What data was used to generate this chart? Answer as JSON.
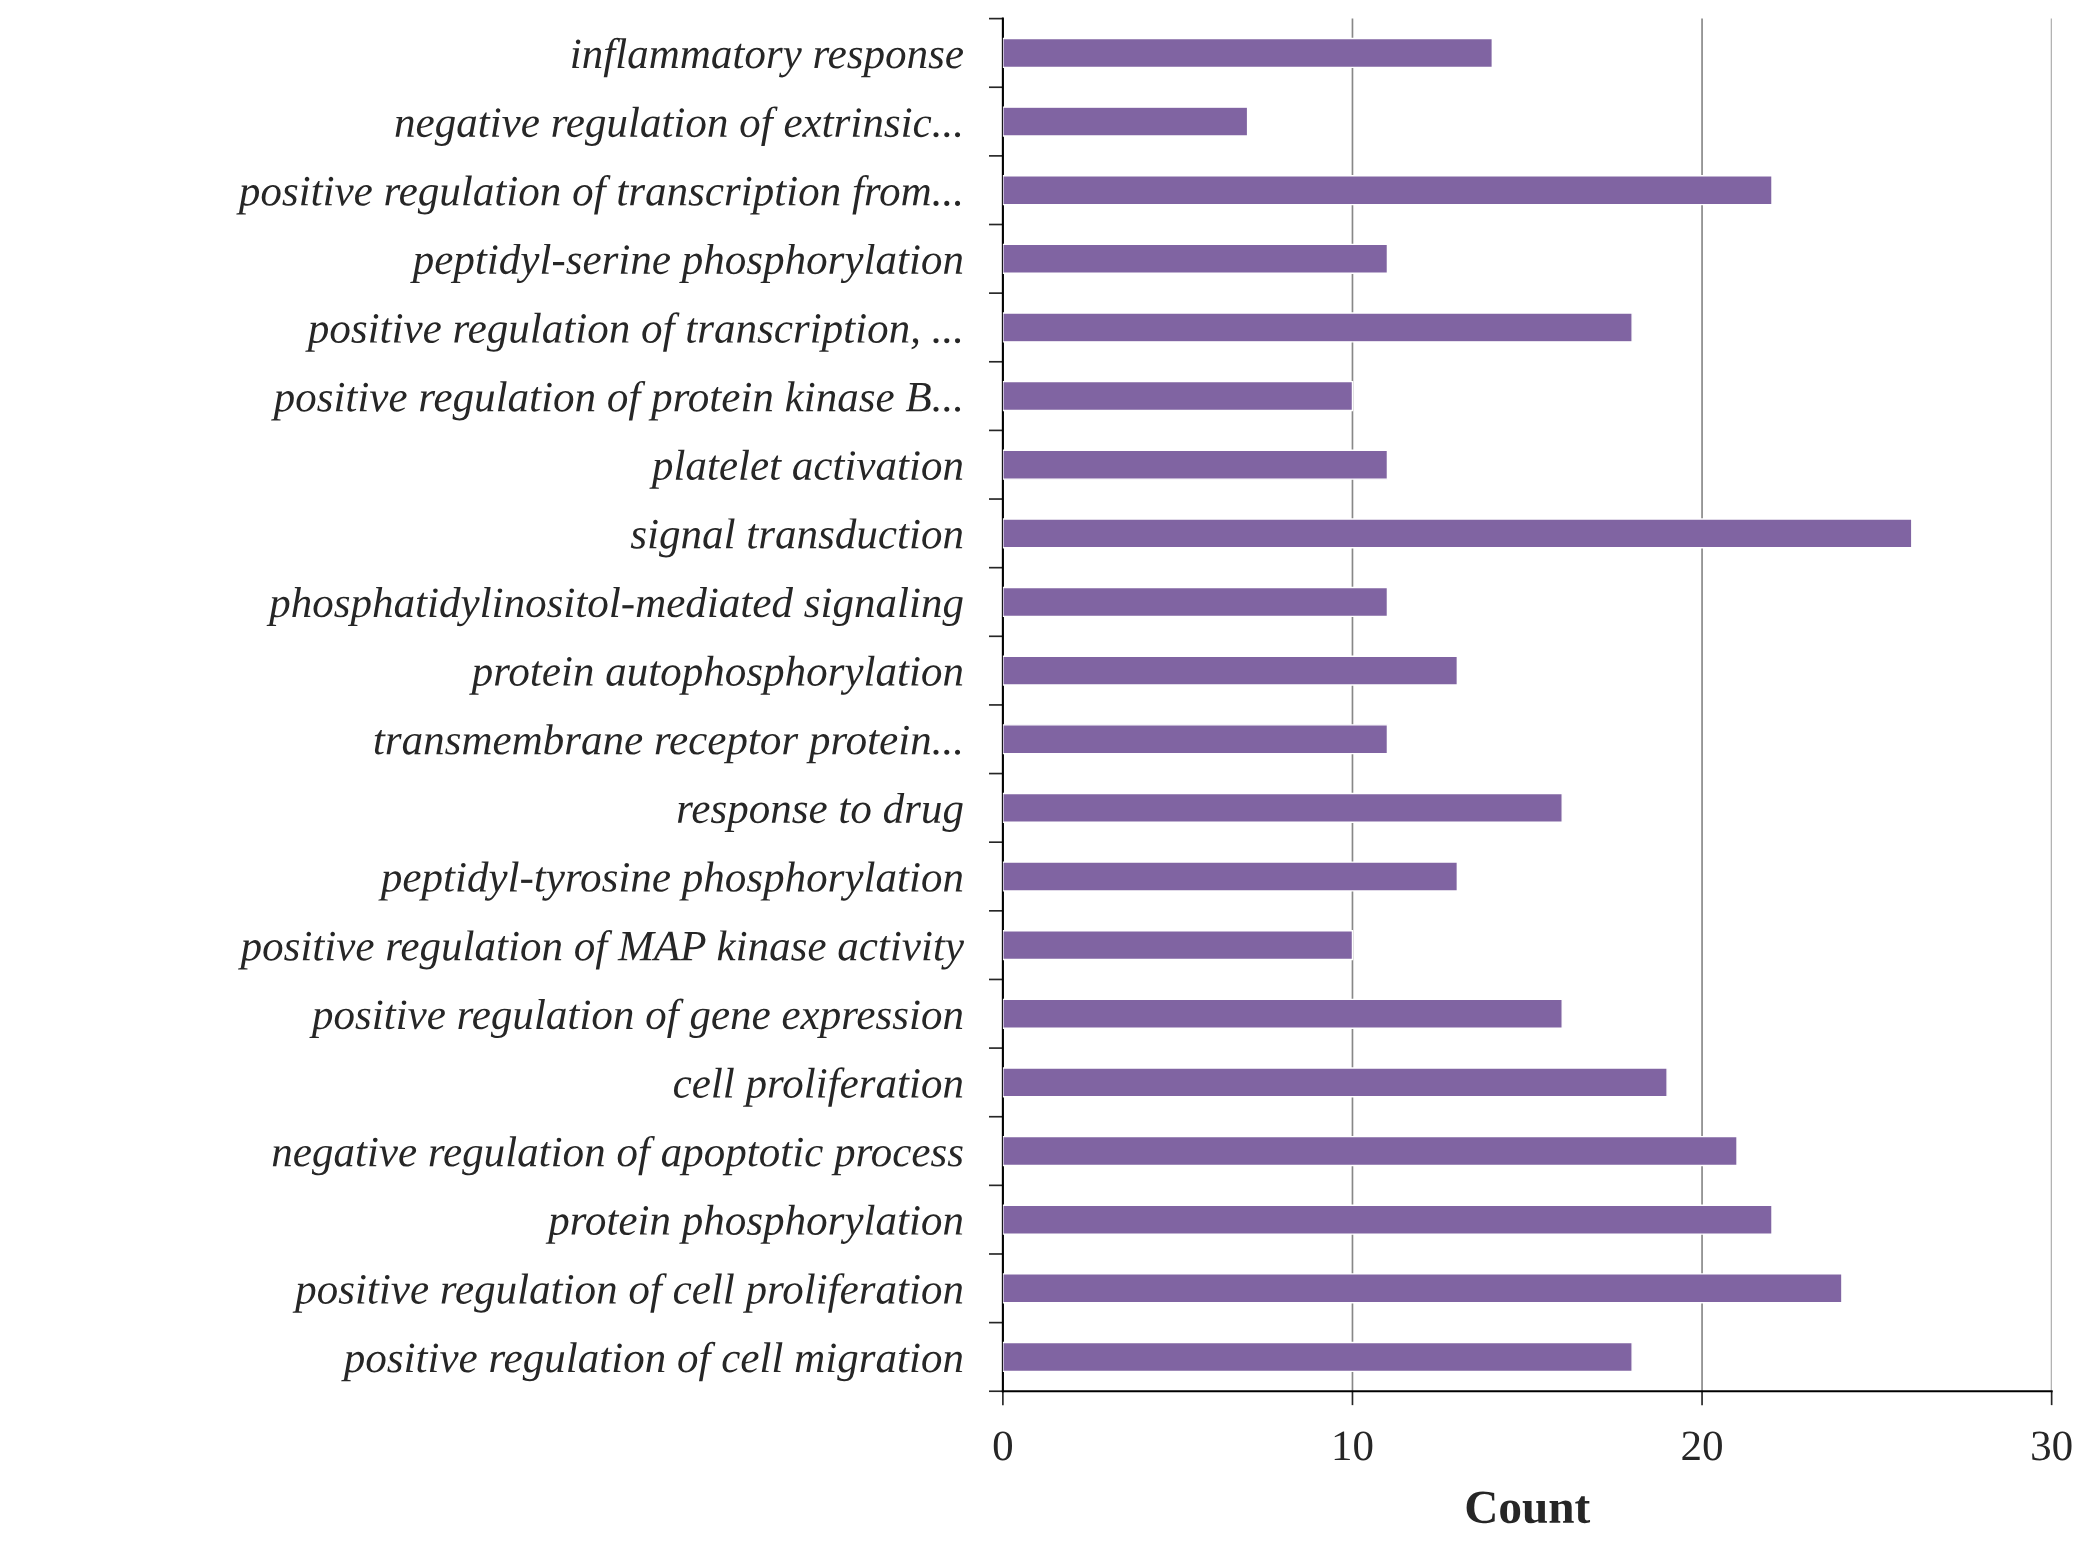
{
  "chart_data": {
    "type": "bar",
    "orientation": "horizontal",
    "xlabel": "Count",
    "categories": [
      "inflammatory response",
      "negative regulation of extrinsic...",
      "positive regulation of transcription from...",
      "peptidyl-serine phosphorylation",
      "positive regulation of transcription, ...",
      "positive regulation of protein kinase B...",
      "platelet activation",
      "signal transduction",
      "phosphatidylinositol-mediated signaling",
      "protein autophosphorylation",
      "transmembrane receptor protein...",
      "response to drug",
      "peptidyl-tyrosine phosphorylation",
      "positive regulation of MAP kinase activity",
      "positive regulation of gene expression",
      "cell proliferation",
      "negative regulation of apoptotic process",
      "protein phosphorylation",
      "positive regulation of cell proliferation",
      "positive regulation of cell migration"
    ],
    "values": [
      14,
      7,
      22,
      11,
      18,
      10,
      11,
      26,
      11,
      13,
      11,
      16,
      13,
      10,
      16,
      19,
      21,
      22,
      24,
      18
    ],
    "color": "#8064a2",
    "xlim": [
      0,
      30
    ],
    "xticks": [
      0,
      10,
      20,
      30
    ],
    "grid": "x"
  }
}
